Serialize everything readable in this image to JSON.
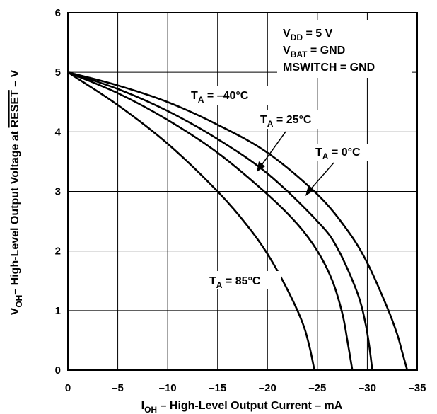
{
  "chart_data": {
    "type": "line",
    "xlabel": {
      "main": "I",
      "sub": "OH",
      "rest": " – High-Level Output Current – mA"
    },
    "ylabel": {
      "main": "V",
      "sub": "OH",
      "rest1": "– High-Level Output Voltage at ",
      "overline": "RESET",
      "rest2": " – V"
    },
    "xlim": [
      0,
      -35
    ],
    "ylim": [
      0,
      6
    ],
    "x_ticks": [
      0,
      -5,
      -10,
      -15,
      -20,
      -25,
      -30,
      -35
    ],
    "x_tick_labels": [
      "0",
      "–5",
      "–10",
      "–15",
      "–20",
      "–25",
      "–30",
      "–35"
    ],
    "y_ticks": [
      0,
      1,
      2,
      3,
      4,
      5,
      6
    ],
    "y_tick_labels": [
      "0",
      "1",
      "2",
      "3",
      "4",
      "5",
      "6"
    ],
    "grid": true,
    "conditions": [
      {
        "main": "V",
        "sub": "DD",
        "rest": " = 5 V"
      },
      {
        "main": "V",
        "sub": "BAT",
        "rest": " = GND"
      },
      {
        "main": "MSWITCH = GND",
        "sub": "",
        "rest": ""
      }
    ],
    "series": [
      {
        "name": "T_A = –40°C",
        "x": [
          0,
          -5,
          -10,
          -15,
          -20,
          -25,
          -28,
          -30,
          -32,
          -33,
          -33.5,
          -34
        ],
        "y": [
          5.0,
          4.78,
          4.5,
          4.12,
          3.65,
          2.95,
          2.35,
          1.8,
          1.05,
          0.6,
          0.3,
          0.0
        ]
      },
      {
        "name": "T_A = 0°C",
        "x": [
          0,
          -5,
          -10,
          -15,
          -20,
          -25,
          -27,
          -29,
          -29.8,
          -30.2,
          -30.5
        ],
        "y": [
          5.0,
          4.72,
          4.35,
          3.88,
          3.3,
          2.5,
          2.05,
          1.3,
          0.8,
          0.4,
          0.0
        ]
      },
      {
        "name": "T_A = 25°C",
        "x": [
          0,
          -5,
          -10,
          -15,
          -20,
          -23,
          -25,
          -26.5,
          -27.5,
          -28,
          -28.5
        ],
        "y": [
          5.0,
          4.65,
          4.2,
          3.65,
          2.95,
          2.45,
          2.0,
          1.5,
          0.95,
          0.5,
          0.0
        ]
      },
      {
        "name": "T_A = 85°C",
        "x": [
          0,
          -5,
          -10,
          -15,
          -18,
          -20,
          -22,
          -23.5,
          -24.2,
          -24.7
        ],
        "y": [
          5.0,
          4.45,
          3.8,
          3.0,
          2.42,
          1.95,
          1.35,
          0.8,
          0.4,
          0.0
        ]
      }
    ],
    "annotations": [
      {
        "main": "T",
        "sub": "A",
        "rest": " = –40°C"
      },
      {
        "main": "T",
        "sub": "A",
        "rest": " = 25°C"
      },
      {
        "main": "T",
        "sub": "A",
        "rest": " = 0°C"
      },
      {
        "main": "T",
        "sub": "A",
        "rest": " = 85°C"
      }
    ]
  }
}
